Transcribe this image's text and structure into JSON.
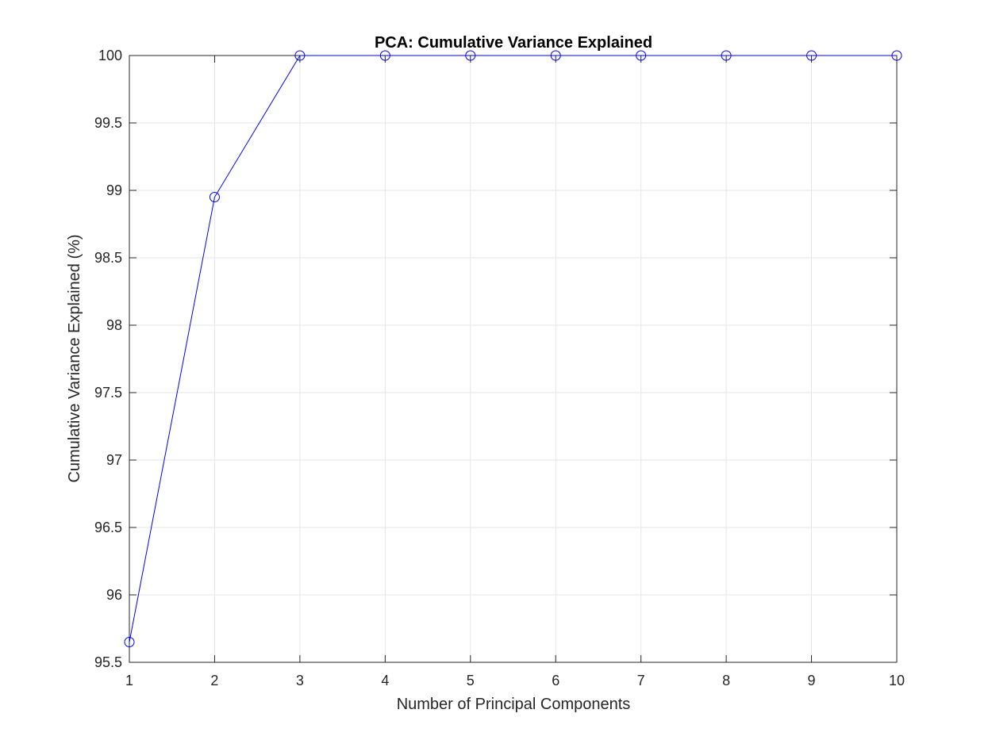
{
  "chart_data": {
    "type": "line",
    "title": "PCA: Cumulative Variance Explained",
    "xlabel": "Number of Principal Components",
    "ylabel": "Cumulative Variance Explained (%)",
    "x": [
      1,
      2,
      3,
      4,
      5,
      6,
      7,
      8,
      9,
      10
    ],
    "series": [
      {
        "values": [
          95.65,
          98.95,
          100,
          100,
          100,
          100,
          100,
          100,
          100,
          100
        ],
        "color": "#0000ff",
        "marker": "circle-open"
      }
    ],
    "xlim": [
      1,
      10
    ],
    "ylim": [
      95.5,
      100
    ],
    "xticks": [
      1,
      2,
      3,
      4,
      5,
      6,
      7,
      8,
      9,
      10
    ],
    "xtick_labels": [
      "1",
      "2",
      "3",
      "4",
      "5",
      "6",
      "7",
      "8",
      "9",
      "10"
    ],
    "yticks": [
      95.5,
      96,
      96.5,
      97,
      97.5,
      98,
      98.5,
      99,
      99.5,
      100
    ],
    "ytick_labels": [
      "95.5",
      "96",
      "96.5",
      "97",
      "97.5",
      "98",
      "98.5",
      "99",
      "99.5",
      "100"
    ],
    "grid": true,
    "colors": {
      "axis": "#262626",
      "grid": "#e6e6e6",
      "line": "#0000ff"
    }
  }
}
